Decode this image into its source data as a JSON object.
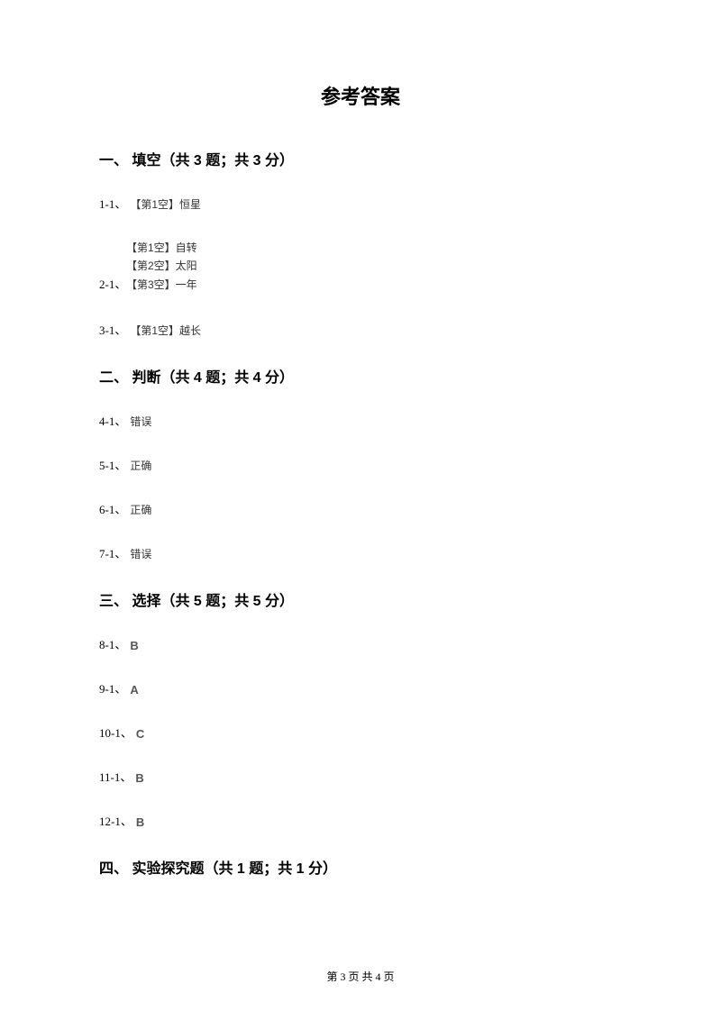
{
  "title": "参考答案",
  "sections": {
    "s1": {
      "header": "一、 填空（共 3 题；共 3 分）",
      "q1": {
        "num": "1-1、",
        "a1": "【第1空】恒星"
      },
      "q2": {
        "num": "2-1、",
        "a1": "【第1空】自转",
        "a2": "【第2空】太阳",
        "a3": "【第3空】一年"
      },
      "q3": {
        "num": "3-1、",
        "a1": "【第1空】越长"
      }
    },
    "s2": {
      "header": "二、 判断（共 4 题；共 4 分）",
      "q4": {
        "num": "4-1、",
        "a": "错误"
      },
      "q5": {
        "num": "5-1、",
        "a": "正确"
      },
      "q6": {
        "num": "6-1、",
        "a": "正确"
      },
      "q7": {
        "num": "7-1、",
        "a": "错误"
      }
    },
    "s3": {
      "header": "三、 选择（共 5 题；共 5 分）",
      "q8": {
        "num": "8-1、",
        "a": "B"
      },
      "q9": {
        "num": "9-1、",
        "a": "A"
      },
      "q10": {
        "num": "10-1、",
        "a": "C"
      },
      "q11": {
        "num": "11-1、",
        "a": "B"
      },
      "q12": {
        "num": "12-1、",
        "a": "B"
      }
    },
    "s4": {
      "header": "四、 实验探究题（共 1 题；共 1 分）"
    }
  },
  "footer": "第 3 页 共 4 页"
}
